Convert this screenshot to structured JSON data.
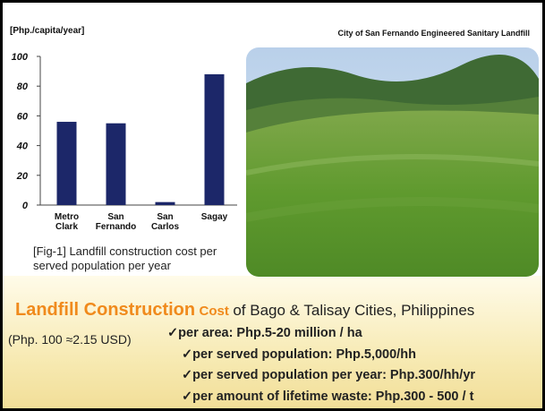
{
  "chart_data": {
    "type": "bar",
    "y_label": "[Php./capita/year]",
    "categories": [
      "Metro Clark",
      "San Fernando",
      "San Carlos",
      "Sagay"
    ],
    "values": [
      56,
      55,
      2,
      88
    ],
    "color": "#1c2769",
    "ylim": [
      0,
      100
    ],
    "yticks": [
      0,
      20,
      40,
      60,
      80,
      100
    ],
    "grid": false
  },
  "caption": "[Fig-1]  Landfill construction cost per served population per year",
  "photo_title": "City of San Fernando Engineered Sanitary Landfill",
  "headline": {
    "main": "Landfill Construction",
    "cost": "Cost",
    "rest": "of Bago & Talisay Cities, Philippines"
  },
  "exchange_rate": "(Php. 100 ≈2.15 USD)",
  "bullets": [
    "✓per area: Php.5-20 million / ha",
    "✓per served population: Php.5,000/hh",
    "✓per served population per year: Php.300/hh/yr",
    "✓per amount of lifetime waste: Php.300 - 500 / t"
  ]
}
